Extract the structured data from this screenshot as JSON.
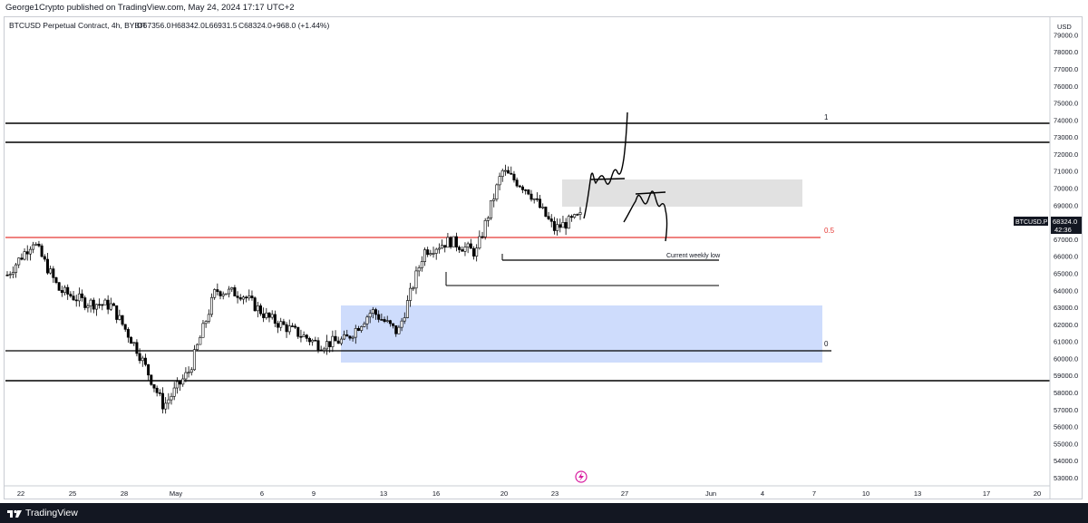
{
  "header": {
    "published_text": "George1Crypto published on TradingView.com, May 24, 2024 17:17 UTC+2"
  },
  "legend": {
    "symbol_line": "BTCUSD Perpetual Contract, 4h, BYBIT",
    "open": "O67356.0",
    "high": "H68342.0",
    "low": "L66931.5",
    "close": "C68324.0",
    "change": "+968.0 (+1.44%)"
  },
  "price_scale": {
    "currency": "USD",
    "ticks": [
      "79000.0",
      "78000.0",
      "77000.0",
      "76000.0",
      "75000.0",
      "74000.0",
      "73000.0",
      "72000.0",
      "71000.0",
      "70000.0",
      "69000.0",
      "68000.0",
      "67000.0",
      "66000.0",
      "65000.0",
      "64000.0",
      "63000.0",
      "62000.0",
      "61000.0",
      "60000.0",
      "59000.0",
      "58000.0",
      "57000.0",
      "56000.0",
      "55000.0",
      "54000.0",
      "53000.0"
    ]
  },
  "last_price": {
    "symbol": "BTCUSD.P",
    "price": "68324.0",
    "countdown": "42:36",
    "color": "#131722"
  },
  "time_axis": {
    "labels": [
      "22",
      "25",
      "28",
      "May",
      "6",
      "9",
      "13",
      "16",
      "20",
      "23",
      "27",
      "Jun",
      "4",
      "7",
      "10",
      "13",
      "17",
      "20"
    ]
  },
  "annotations": {
    "fib_1": "1",
    "fib_05": "0.5",
    "fib_0": "0",
    "weekly_low_label": "Current weekly low"
  },
  "footer": {
    "brand": "TradingView"
  },
  "colors": {
    "up_candle": "#ffffff",
    "down_candle": "#000000",
    "fib_mid_line": "#e53935",
    "demand_zone": "#c6d6fb",
    "supply_zone": "#e0e0e0",
    "level_line": "#000000"
  },
  "chart_data": {
    "type": "candlestick",
    "title": "BTCUSD Perpetual Contract, 4h, BYBIT",
    "ylabel": "USD",
    "ylim": [
      52500,
      79800
    ],
    "levels": [
      {
        "name": "1",
        "price": 74000
      },
      {
        "name": "",
        "price": 72900
      },
      {
        "name": "0.5",
        "price": 67400
      },
      {
        "name": "0",
        "price": 60800
      },
      {
        "name": "",
        "price": 59000
      }
    ],
    "zones": [
      {
        "kind": "demand",
        "from": 60100,
        "to": 63400
      },
      {
        "kind": "supply",
        "from": 69200,
        "to": 70700
      }
    ],
    "weekly_low": 66000,
    "secondary_low": 64600,
    "series": [
      {
        "x": [
          "Apr 20",
          "Apr 22",
          "Apr 24",
          "Apr 26",
          "Apr 28",
          "Apr 30",
          "May 1",
          "May 2",
          "May 4",
          "May 6",
          "May 8",
          "May 9",
          "May 10",
          "May 12",
          "May 14",
          "May 15",
          "May 17",
          "May 19",
          "May 20",
          "May 21",
          "May 22",
          "May 23",
          "May 24"
        ],
        "close": [
          64900,
          66900,
          64000,
          63300,
          63100,
          60500,
          57200,
          59300,
          64000,
          63800,
          62400,
          61600,
          60800,
          61100,
          62800,
          61500,
          66300,
          66900,
          66200,
          71000,
          69900,
          67600,
          68324
        ]
      }
    ]
  }
}
